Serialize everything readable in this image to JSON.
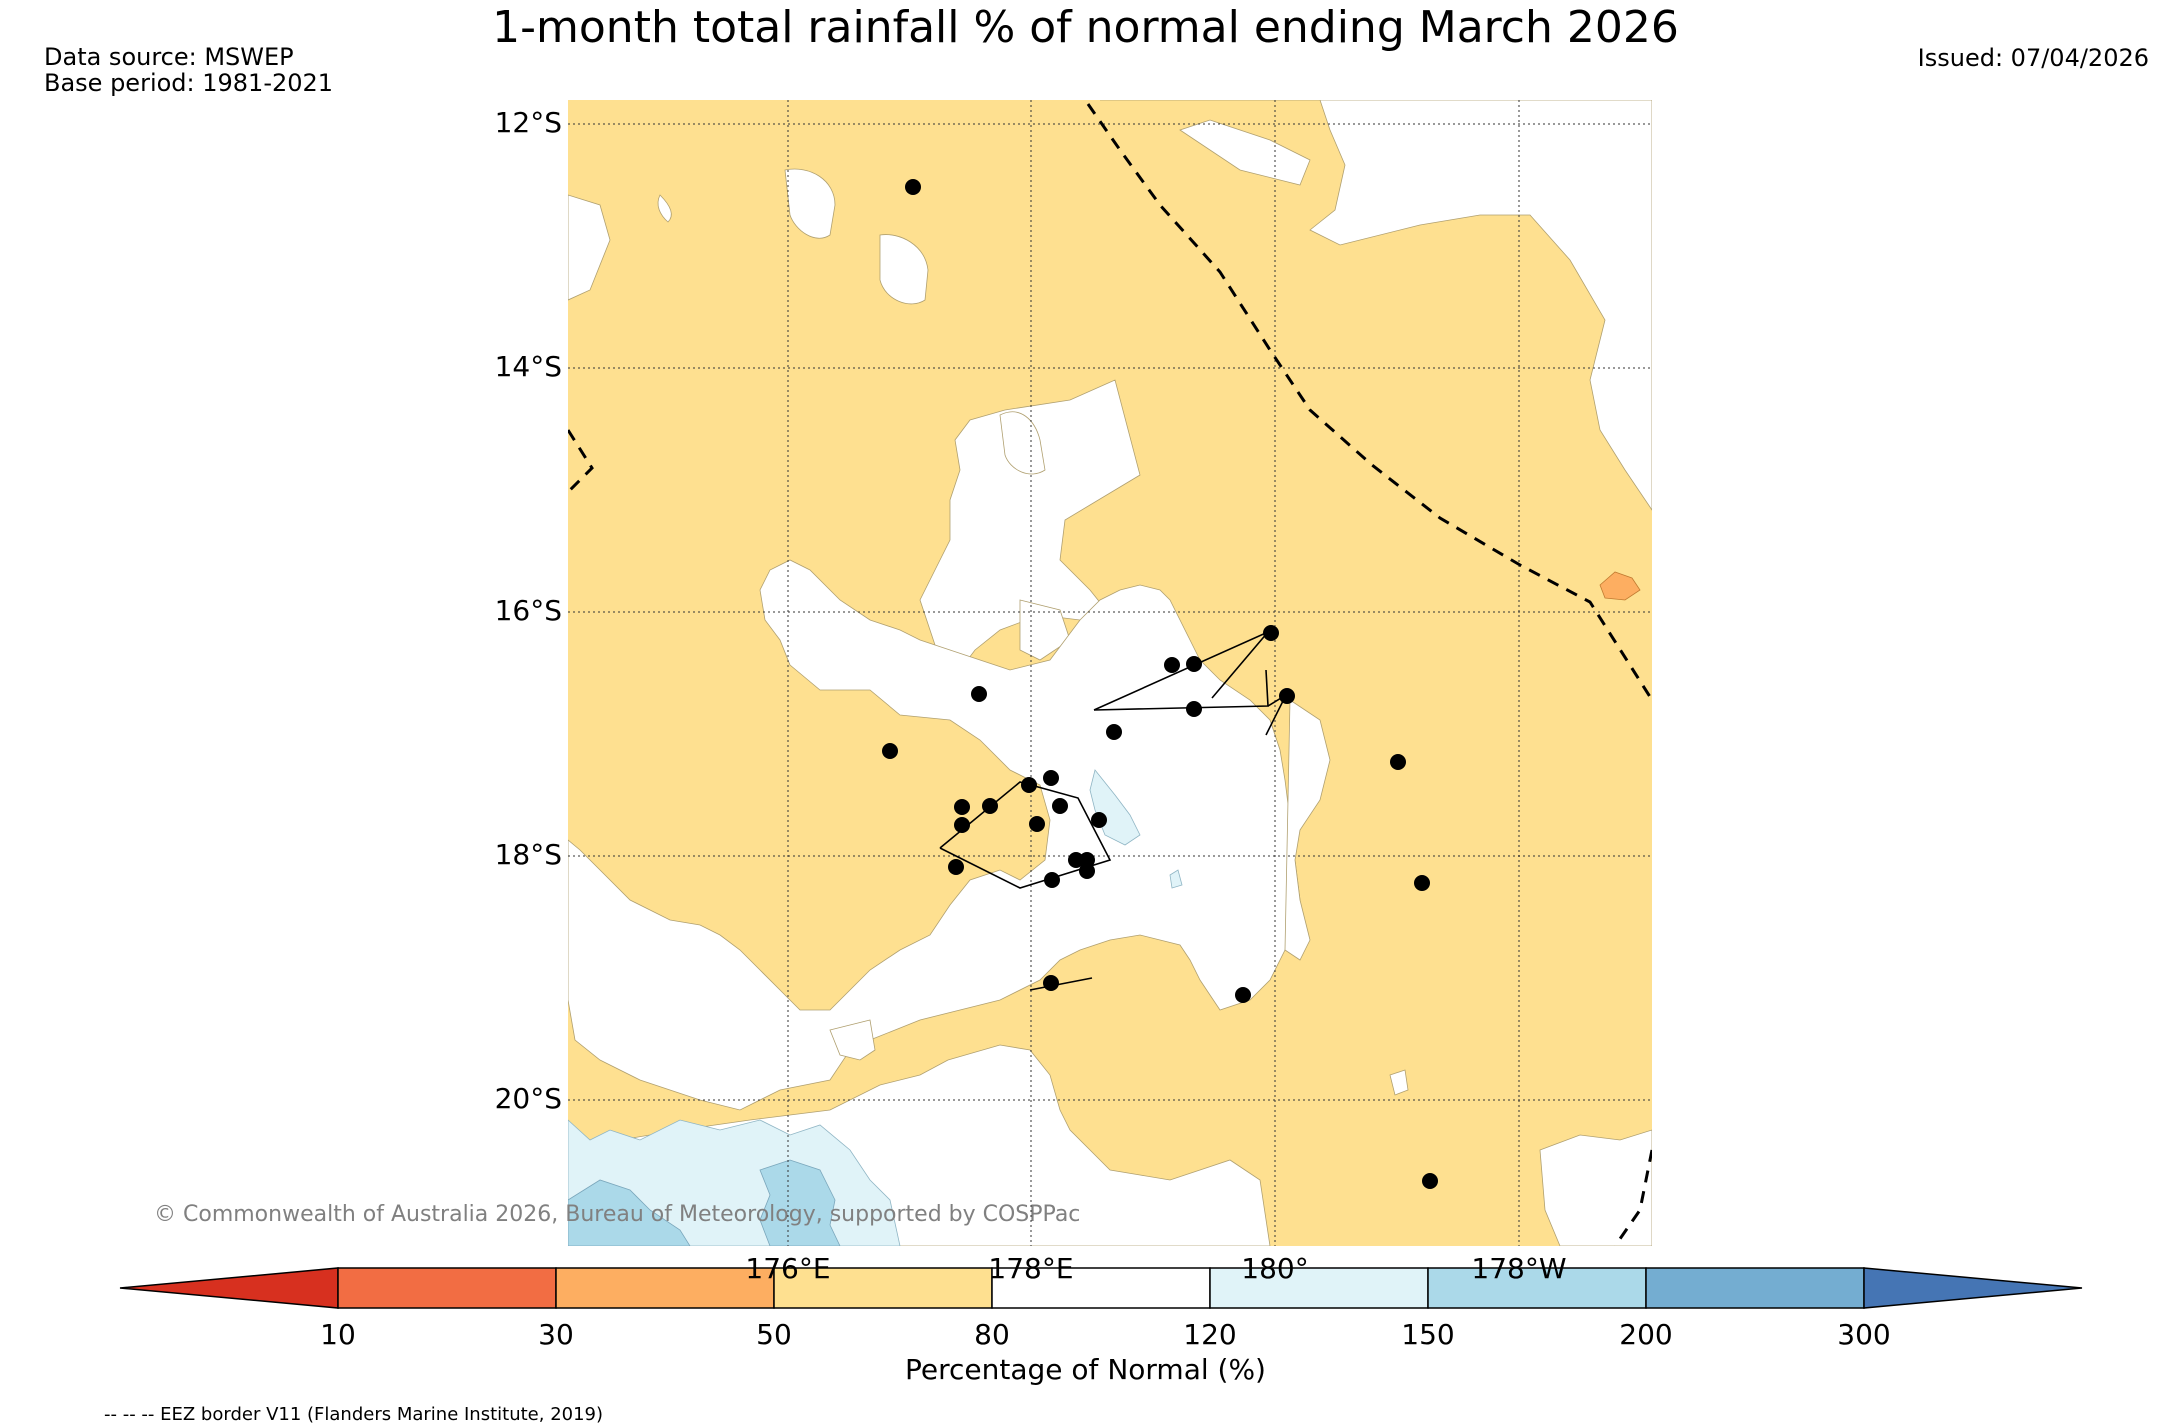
{
  "title": "1-month total rainfall % of normal ending March 2026",
  "data_source": "Data source: MSWEP",
  "base_period": "Base period: 1981-2021",
  "issued": "Issued: 07/04/2026",
  "lat_labels": [
    "12°S",
    "14°S",
    "16°S",
    "18°S",
    "20°S"
  ],
  "lon_labels": [
    "176°E",
    "178°E",
    "180°",
    "178°W"
  ],
  "copyright": "© Commonwealth of Australia 2026, Bureau of Meteorology, supported by COSPPac",
  "colorbar": {
    "ticks": [
      "10",
      "30",
      "50",
      "80",
      "120",
      "150",
      "200",
      "300"
    ],
    "label": "Percentage of Normal (%)",
    "colors": {
      "below_10": "#d7301f",
      "10-30": "#f26d43",
      "30-50": "#fdae61",
      "50-80": "#fee090",
      "80-120": "#ffffff",
      "120-150": "#e0f3f8",
      "150-200": "#abd9e9",
      "200-300": "#74add1",
      "above_300": "#4575b4"
    }
  },
  "legend_note": "-- -- -- EEZ border V11 (Flanders Marine Institute, 2019)"
}
